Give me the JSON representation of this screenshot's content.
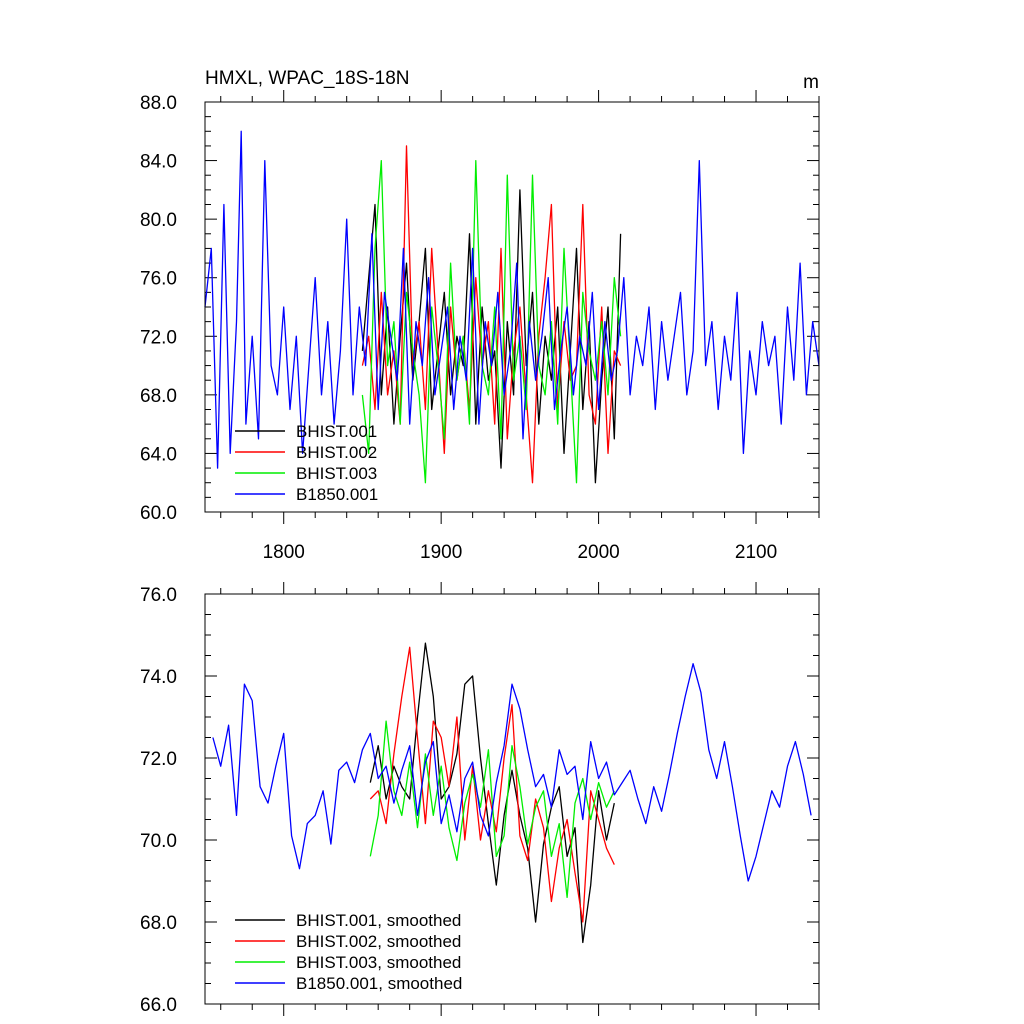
{
  "chart_data": [
    {
      "type": "line",
      "title": "HMXL, WPAC_18S-18N",
      "units": "m",
      "xlim": [
        1750,
        2140
      ],
      "ylim": [
        60,
        88
      ],
      "x_ticks": [
        1800,
        1900,
        2000,
        2100
      ],
      "x_tick_labels": [
        "1800",
        "1900",
        "2000",
        "2100"
      ],
      "y_ticks": [
        60,
        64,
        68,
        72,
        76,
        80,
        84,
        88
      ],
      "y_tick_labels": [
        "60.0",
        "64.0",
        "68.0",
        "72.0",
        "76.0",
        "80.0",
        "84.0",
        "88.0"
      ],
      "legend_position": "bottom-left",
      "series": [
        {
          "name": "BHIST.001",
          "color": "#000000",
          "x": [
            1850,
            1854,
            1858,
            1862,
            1866,
            1870,
            1874,
            1878,
            1882,
            1886,
            1890,
            1894,
            1898,
            1902,
            1906,
            1910,
            1914,
            1918,
            1922,
            1926,
            1930,
            1934,
            1938,
            1942,
            1946,
            1950,
            1954,
            1958,
            1962,
            1966,
            1970,
            1974,
            1978,
            1982,
            1986,
            1990,
            1994,
            1998,
            2002,
            2006,
            2010,
            2014
          ],
          "y": [
            71,
            76,
            81,
            68,
            74,
            66,
            72,
            77,
            69,
            73,
            78,
            67,
            71,
            75,
            68,
            72,
            70,
            79,
            66,
            74,
            69,
            71,
            63,
            73,
            68,
            82,
            70,
            75,
            66,
            72,
            69,
            74,
            64,
            71,
            78,
            67,
            73,
            62,
            69,
            74,
            65,
            79
          ]
        },
        {
          "name": "BHIST.002",
          "color": "#ff0000",
          "x": [
            1850,
            1854,
            1858,
            1862,
            1866,
            1870,
            1874,
            1878,
            1882,
            1886,
            1890,
            1894,
            1898,
            1902,
            1906,
            1910,
            1914,
            1918,
            1922,
            1926,
            1930,
            1934,
            1938,
            1942,
            1946,
            1950,
            1954,
            1958,
            1962,
            1966,
            1970,
            1974,
            1978,
            1982,
            1986,
            1990,
            1994,
            1998,
            2002,
            2006,
            2010,
            2014
          ],
          "y": [
            70,
            72,
            67,
            75,
            68,
            71,
            66,
            85,
            70,
            73,
            67,
            78,
            71,
            64,
            74,
            69,
            72,
            67,
            76,
            70,
            73,
            66,
            78,
            65,
            71,
            74,
            68,
            62,
            72,
            76,
            81,
            67,
            73,
            69,
            70,
            81,
            68,
            66,
            74,
            64,
            71,
            70
          ]
        },
        {
          "name": "BHIST.003",
          "color": "#00ee00",
          "x": [
            1850,
            1854,
            1858,
            1862,
            1866,
            1870,
            1874,
            1878,
            1882,
            1886,
            1890,
            1894,
            1898,
            1902,
            1906,
            1910,
            1914,
            1918,
            1922,
            1926,
            1930,
            1934,
            1938,
            1942,
            1946,
            1950,
            1954,
            1958,
            1962,
            1966,
            1970,
            1974,
            1978,
            1982,
            1986,
            1990,
            1994,
            1998,
            2002,
            2006,
            2010,
            2014
          ],
          "y": [
            68,
            64,
            78,
            84,
            70,
            73,
            66,
            75,
            71,
            68,
            62,
            74,
            70,
            65,
            77,
            69,
            72,
            66,
            84,
            70,
            68,
            74,
            65,
            83,
            69,
            72,
            67,
            83,
            70,
            68,
            73,
            66,
            78,
            70,
            62,
            75,
            71,
            69,
            73,
            68,
            76,
            72
          ]
        },
        {
          "name": "B1850.001",
          "color": "#0000ff",
          "x": [
            1750,
            1754,
            1758,
            1762,
            1766,
            1770,
            1773,
            1776,
            1780,
            1784,
            1788,
            1792,
            1796,
            1800,
            1804,
            1808,
            1812,
            1816,
            1820,
            1824,
            1828,
            1832,
            1836,
            1840,
            1844,
            1848,
            1852,
            1856,
            1860,
            1864,
            1868,
            1872,
            1876,
            1880,
            1884,
            1888,
            1892,
            1896,
            1900,
            1904,
            1908,
            1912,
            1916,
            1920,
            1924,
            1928,
            1932,
            1936,
            1940,
            1944,
            1948,
            1952,
            1956,
            1960,
            1964,
            1968,
            1972,
            1976,
            1980,
            1984,
            1988,
            1992,
            1996,
            2000,
            2004,
            2008,
            2012,
            2016,
            2020,
            2024,
            2028,
            2032,
            2036,
            2040,
            2044,
            2048,
            2052,
            2056,
            2060,
            2064,
            2068,
            2072,
            2076,
            2080,
            2084,
            2088,
            2092,
            2096,
            2100,
            2104,
            2108,
            2112,
            2116,
            2120,
            2124,
            2128,
            2132,
            2136,
            2140
          ],
          "y": [
            74,
            78,
            63,
            81,
            64,
            73,
            86,
            66,
            72,
            65,
            84,
            70,
            68,
            74,
            67,
            72,
            64,
            70,
            76,
            68,
            73,
            66,
            71,
            80,
            68,
            74,
            70,
            79,
            67,
            75,
            72,
            69,
            78,
            66,
            73,
            70,
            76,
            68,
            71,
            74,
            67,
            72,
            69,
            78,
            66,
            73,
            70,
            75,
            68,
            71,
            77,
            65,
            73,
            69,
            72,
            76,
            67,
            71,
            74,
            68,
            72,
            70,
            75,
            67,
            73,
            69,
            71,
            76,
            68,
            72,
            70,
            74,
            67,
            73,
            69,
            72,
            75,
            68,
            71,
            84,
            70,
            73,
            67,
            72,
            69,
            75,
            64,
            71,
            68,
            73,
            70,
            72,
            66,
            74,
            69,
            77,
            68,
            73,
            70
          ]
        }
      ]
    },
    {
      "type": "line",
      "xlim": [
        1750,
        2140
      ],
      "ylim": [
        66,
        76
      ],
      "y_ticks": [
        66,
        68,
        70,
        72,
        74,
        76
      ],
      "y_tick_labels": [
        "66.0",
        "68.0",
        "70.0",
        "72.0",
        "74.0",
        "76.0"
      ],
      "legend_position": "bottom-left",
      "series": [
        {
          "name": "BHIST.001, smoothed",
          "color": "#000000",
          "x": [
            1855,
            1860,
            1865,
            1870,
            1875,
            1880,
            1885,
            1890,
            1895,
            1900,
            1905,
            1910,
            1915,
            1920,
            1925,
            1930,
            1935,
            1940,
            1945,
            1950,
            1955,
            1960,
            1965,
            1970,
            1975,
            1980,
            1985,
            1990,
            1995,
            2000,
            2005,
            2010
          ],
          "y": [
            71.4,
            72.3,
            71.0,
            71.8,
            71.3,
            71.0,
            73.0,
            74.8,
            73.5,
            71.0,
            71.3,
            72.1,
            73.8,
            74.0,
            72.0,
            70.4,
            68.9,
            70.6,
            71.7,
            70.6,
            69.8,
            68.0,
            69.9,
            70.8,
            71.3,
            69.6,
            70.3,
            67.5,
            68.9,
            71.2,
            70.0,
            70.9
          ]
        },
        {
          "name": "BHIST.002, smoothed",
          "color": "#ff0000",
          "x": [
            1855,
            1860,
            1865,
            1870,
            1875,
            1880,
            1885,
            1890,
            1895,
            1900,
            1905,
            1910,
            1915,
            1920,
            1925,
            1930,
            1935,
            1940,
            1945,
            1950,
            1955,
            1960,
            1965,
            1970,
            1975,
            1980,
            1985,
            1990,
            1995,
            2000,
            2005,
            2010
          ],
          "y": [
            71.0,
            71.2,
            70.4,
            72.1,
            73.5,
            74.7,
            72.5,
            70.4,
            72.9,
            72.5,
            71.3,
            73.0,
            70.0,
            71.8,
            70.0,
            71.2,
            70.2,
            72.0,
            73.3,
            70.1,
            69.5,
            71.0,
            70.3,
            68.5,
            69.8,
            70.5,
            69.2,
            68.0,
            71.2,
            70.5,
            69.8,
            69.4
          ]
        },
        {
          "name": "BHIST.003, smoothed",
          "color": "#00ee00",
          "x": [
            1855,
            1860,
            1865,
            1870,
            1875,
            1880,
            1885,
            1890,
            1895,
            1900,
            1905,
            1910,
            1915,
            1920,
            1925,
            1930,
            1935,
            1940,
            1945,
            1950,
            1955,
            1960,
            1965,
            1970,
            1975,
            1980,
            1985,
            1990,
            1995,
            2000,
            2005,
            2010
          ],
          "y": [
            69.6,
            70.6,
            72.9,
            71.2,
            70.6,
            71.9,
            70.3,
            72.1,
            70.6,
            71.8,
            70.3,
            69.5,
            70.9,
            71.6,
            70.8,
            72.2,
            69.6,
            70.1,
            72.3,
            71.3,
            69.9,
            70.8,
            71.2,
            69.6,
            70.4,
            68.6,
            70.9,
            71.5,
            70.5,
            71.4,
            70.8,
            71.2
          ]
        },
        {
          "name": "B1850.001, smoothed",
          "color": "#0000ff",
          "x": [
            1755,
            1760,
            1765,
            1770,
            1775,
            1780,
            1785,
            1790,
            1795,
            1800,
            1805,
            1810,
            1815,
            1820,
            1825,
            1830,
            1835,
            1840,
            1845,
            1850,
            1855,
            1860,
            1865,
            1870,
            1875,
            1880,
            1885,
            1890,
            1895,
            1900,
            1905,
            1910,
            1915,
            1920,
            1925,
            1930,
            1935,
            1940,
            1945,
            1950,
            1955,
            1960,
            1965,
            1970,
            1975,
            1980,
            1985,
            1990,
            1995,
            2000,
            2005,
            2010,
            2015,
            2020,
            2025,
            2030,
            2035,
            2040,
            2045,
            2050,
            2055,
            2060,
            2065,
            2070,
            2075,
            2080,
            2085,
            2090,
            2095,
            2100,
            2105,
            2110,
            2115,
            2120,
            2125,
            2130,
            2135
          ],
          "y": [
            72.5,
            71.8,
            72.8,
            70.6,
            73.8,
            73.4,
            71.3,
            70.9,
            71.8,
            72.6,
            70.1,
            69.3,
            70.4,
            70.6,
            71.2,
            69.9,
            71.7,
            71.9,
            71.4,
            72.2,
            72.6,
            71.5,
            71.8,
            70.9,
            71.7,
            72.3,
            70.6,
            71.9,
            72.4,
            70.4,
            71.1,
            70.2,
            71.5,
            71.9,
            70.6,
            70.1,
            71.4,
            72.3,
            73.8,
            73.2,
            72.2,
            71.3,
            71.6,
            70.8,
            72.2,
            71.6,
            71.8,
            70.5,
            72.4,
            71.5,
            71.9,
            71.1,
            71.4,
            71.7,
            71.0,
            70.4,
            71.3,
            70.7,
            71.6,
            72.6,
            73.5,
            74.3,
            73.6,
            72.2,
            71.5,
            72.4,
            71.3,
            70.1,
            69.0,
            69.6,
            70.4,
            71.2,
            70.8,
            71.8,
            72.4,
            71.6,
            70.6
          ]
        }
      ]
    }
  ]
}
